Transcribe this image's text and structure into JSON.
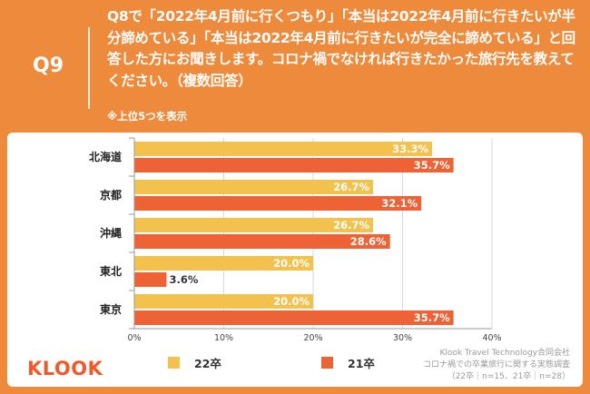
{
  "header": {
    "question_number": "Q9",
    "question_text": "Q8で「2022年4月前に行くつもり」「本当は2022年4月前に行きたいが半分諦めている」「本当は2022年4月前に行きたいが完全に諦めている」と回答した方にお聞きします。コロナ禍でなければ行きたかった旅行先を教えてください。（複数回答）",
    "note": "※上位5つを表示"
  },
  "brand": {
    "logo": "KLOOK"
  },
  "source": {
    "line1": "Klook Travel Technology合同会社",
    "line2": "コロナ禍での卒業旅行に関する実態調査",
    "line3": "（22卒｜n=15、21卒｜n=28）"
  },
  "colors": {
    "background": "#EE8A3C",
    "series_22": "#F2C14E",
    "series_21": "#EE6335"
  },
  "chart_data": {
    "type": "bar",
    "orientation": "horizontal",
    "categories": [
      "北海道",
      "京都",
      "沖縄",
      "東北",
      "東京"
    ],
    "series": [
      {
        "name": "22卒",
        "values": [
          33.3,
          26.7,
          26.7,
          20.0,
          20.0
        ],
        "labels": [
          "33.3%",
          "26.7%",
          "26.7%",
          "20.0%",
          "20.0%"
        ],
        "color": "#F2C14E"
      },
      {
        "name": "21卒",
        "values": [
          35.7,
          32.1,
          28.6,
          3.6,
          35.7
        ],
        "labels": [
          "35.7%",
          "32.1%",
          "28.6%",
          "3.6%",
          "35.7%"
        ],
        "color": "#EE6335"
      }
    ],
    "xlim": [
      0,
      40
    ],
    "xticks": [
      "0%",
      "10%",
      "20%",
      "30%",
      "40%"
    ],
    "xtick_values": [
      0,
      10,
      20,
      30,
      40
    ],
    "grid": true,
    "legend_position": "bottom"
  }
}
